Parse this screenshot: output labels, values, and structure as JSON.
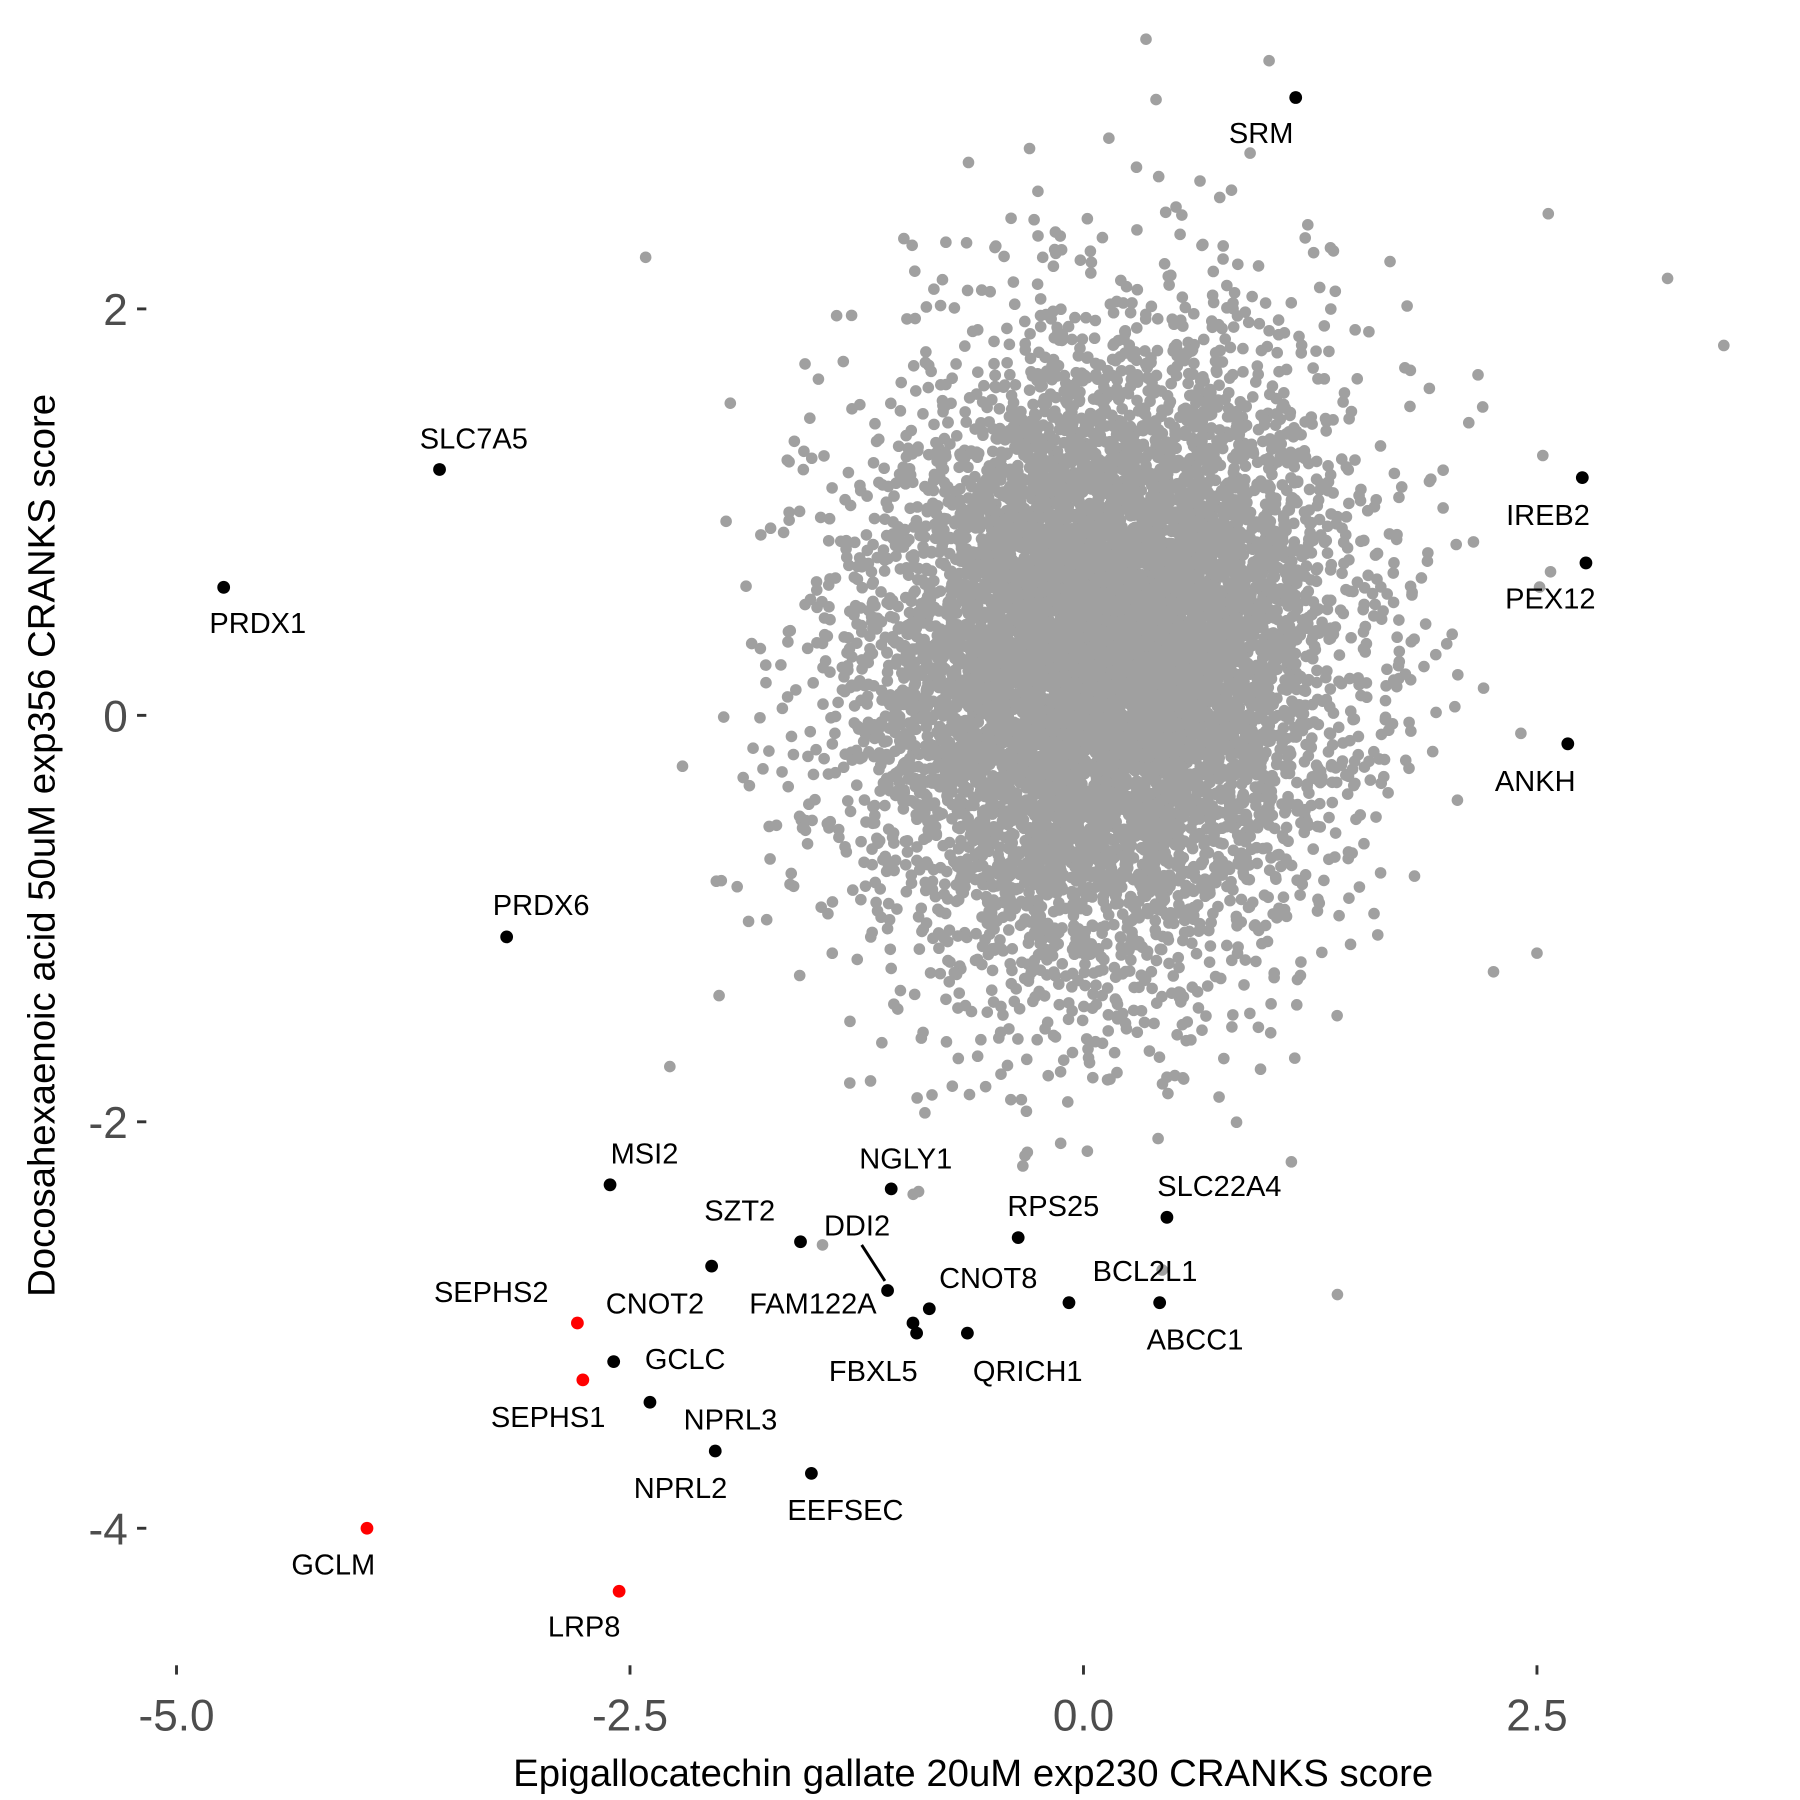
{
  "chart_data": {
    "type": "scatter",
    "title": "",
    "xlabel": "Epigallocatechin gallate 20uM exp230 CRANKS score",
    "ylabel": "Docosahexaenoic acid 50uM exp356 CRANKS score",
    "xlim": [
      -5.1,
      3.6
    ],
    "ylim": [
      -4.6,
      3.1
    ],
    "x_ticks": [
      -5.0,
      -2.5,
      0.0,
      2.5
    ],
    "x_tick_labels": [
      "-5.0",
      "-2.5",
      "0.0",
      "2.5"
    ],
    "y_ticks": [
      -4,
      -2,
      0,
      2
    ],
    "y_tick_labels": [
      "-4",
      "-2",
      "0",
      "2"
    ],
    "grid": false,
    "colors": {
      "background_points": "#a0a0a0",
      "highlight": "#000000",
      "red": "#ff0000"
    },
    "background_points": {
      "description": "dense cloud of unlabeled genes",
      "count": 9000,
      "center": [
        0.1,
        0.4
      ],
      "sd": [
        0.62,
        0.62
      ]
    },
    "labeled_points": [
      {
        "gene": "SRM",
        "x": 1.17,
        "y": 3.04,
        "color": "black"
      },
      {
        "gene": "SLC7A5",
        "x": -3.55,
        "y": 1.21,
        "color": "black"
      },
      {
        "gene": "PRDX1",
        "x": -4.74,
        "y": 0.63,
        "color": "black"
      },
      {
        "gene": "IREB2",
        "x": 2.75,
        "y": 1.17,
        "color": "black"
      },
      {
        "gene": "PEX12",
        "x": 2.77,
        "y": 0.75,
        "color": "black"
      },
      {
        "gene": "ANKH",
        "x": 2.67,
        "y": -0.14,
        "color": "black"
      },
      {
        "gene": "PRDX6",
        "x": -3.18,
        "y": -1.09,
        "color": "black"
      },
      {
        "gene": "MSI2",
        "x": -2.61,
        "y": -2.31,
        "color": "black"
      },
      {
        "gene": "NGLY1",
        "x": -1.06,
        "y": -2.33,
        "color": "black"
      },
      {
        "gene": "SLC22A4",
        "x": 0.46,
        "y": -2.47,
        "color": "black"
      },
      {
        "gene": "RPS25",
        "x": -0.36,
        "y": -2.57,
        "color": "black"
      },
      {
        "gene": "SZT2",
        "x": -1.56,
        "y": -2.59,
        "color": "black"
      },
      {
        "gene": "DDI2",
        "x": -1.08,
        "y": -2.83,
        "color": "black"
      },
      {
        "gene": "CNOT2",
        "x": -2.05,
        "y": -2.71,
        "color": "black"
      },
      {
        "gene": "FAM122A",
        "x": -0.94,
        "y": -2.99,
        "color": "black"
      },
      {
        "gene": "CNOT8",
        "x": -0.85,
        "y": -2.92,
        "color": "black"
      },
      {
        "gene": "BCL2L1",
        "x": -0.08,
        "y": -2.89,
        "color": "black"
      },
      {
        "gene": "ABCC1",
        "x": 0.42,
        "y": -2.89,
        "color": "black"
      },
      {
        "gene": "FBXL5",
        "x": -0.92,
        "y": -3.04,
        "color": "black"
      },
      {
        "gene": "QRICH1",
        "x": -0.64,
        "y": -3.04,
        "color": "black"
      },
      {
        "gene": "SEPHS2",
        "x": -2.79,
        "y": -2.99,
        "color": "red"
      },
      {
        "gene": "GCLC",
        "x": -2.59,
        "y": -3.18,
        "color": "black"
      },
      {
        "gene": "SEPHS1",
        "x": -2.76,
        "y": -3.27,
        "color": "red"
      },
      {
        "gene": "NPRL3",
        "x": -2.39,
        "y": -3.38,
        "color": "black"
      },
      {
        "gene": "NPRL2",
        "x": -2.03,
        "y": -3.62,
        "color": "black"
      },
      {
        "gene": "EEFSEC",
        "x": -1.5,
        "y": -3.73,
        "color": "black"
      },
      {
        "gene": "GCLM",
        "x": -3.95,
        "y": -4.0,
        "color": "red"
      },
      {
        "gene": "LRP8",
        "x": -2.56,
        "y": -4.31,
        "color": "red"
      }
    ]
  }
}
